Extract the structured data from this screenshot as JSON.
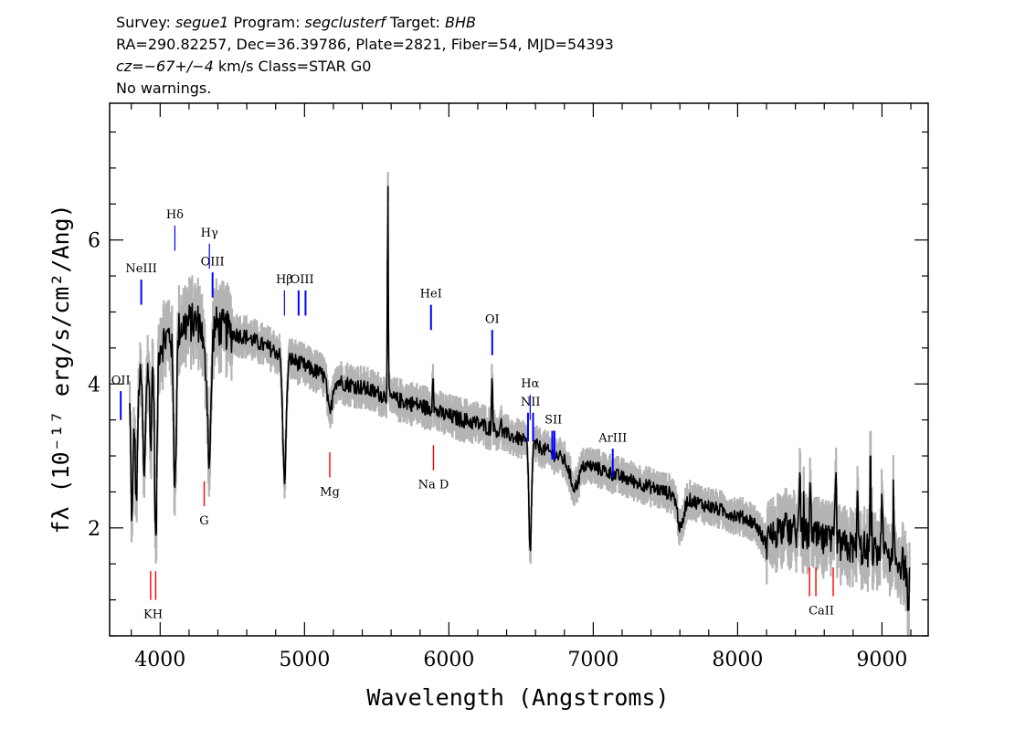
{
  "header": {
    "line1": [
      {
        "text": "Survey: ",
        "italic": false
      },
      {
        "text": "segue1",
        "italic": true
      },
      {
        "text": " Program: ",
        "italic": false
      },
      {
        "text": "segclusterf",
        "italic": true
      },
      {
        "text": " Target: ",
        "italic": false
      },
      {
        "text": "BHB",
        "italic": true
      }
    ],
    "line2": "RA=290.82257, Dec=36.39786, Plate=2821, Fiber=54, MJD=54393",
    "line3": [
      {
        "text": "cz=−67+/−4",
        "italic": true
      },
      {
        "text": " km/s Class=STAR G0",
        "italic": false
      }
    ],
    "line4": "No warnings."
  },
  "chart_data": {
    "type": "line",
    "xlabel": "Wavelength (Angstroms)",
    "ylabel": "fλ (10⁻¹⁷ erg/s/cm²/Ang)",
    "xlim": [
      3650,
      9320
    ],
    "ylim": [
      0.5,
      7.9
    ],
    "x_ticks": [
      4000,
      5000,
      6000,
      7000,
      8000,
      9000
    ],
    "y_ticks": [
      2,
      4,
      6
    ],
    "x_minor_step": 200,
    "y_minor_step": 0.5,
    "colors": {
      "spectrum": "#000000",
      "error": "#b4b4b4",
      "emission": "#0000ff",
      "absorption": "#ff0000"
    },
    "continuum": [
      [
        3800,
        4.0
      ],
      [
        3900,
        4.15
      ],
      [
        4000,
        4.55
      ],
      [
        4100,
        4.75
      ],
      [
        4200,
        4.85
      ],
      [
        4300,
        4.85
      ],
      [
        4400,
        4.8
      ],
      [
        4500,
        4.7
      ],
      [
        4600,
        4.65
      ],
      [
        4700,
        4.55
      ],
      [
        4800,
        4.45
      ],
      [
        4900,
        4.35
      ],
      [
        5000,
        4.25
      ],
      [
        5100,
        4.15
      ],
      [
        5200,
        4.05
      ],
      [
        5400,
        3.95
      ],
      [
        5600,
        3.8
      ],
      [
        5800,
        3.7
      ],
      [
        6000,
        3.55
      ],
      [
        6200,
        3.45
      ],
      [
        6400,
        3.3
      ],
      [
        6600,
        3.15
      ],
      [
        6800,
        2.95
      ],
      [
        7000,
        2.85
      ],
      [
        7200,
        2.7
      ],
      [
        7500,
        2.5
      ],
      [
        7800,
        2.3
      ],
      [
        8100,
        2.1
      ],
      [
        8400,
        1.95
      ],
      [
        8700,
        1.75
      ],
      [
        9000,
        1.65
      ],
      [
        9200,
        1.45
      ]
    ],
    "features": [
      {
        "x": 3805,
        "d": -1.9,
        "w": 8
      },
      {
        "x": 3835,
        "d": -1.7,
        "w": 8
      },
      {
        "x": 3889,
        "d": -1.5,
        "w": 8
      },
      {
        "x": 3934,
        "d": -1.2,
        "w": 6
      },
      {
        "x": 3970,
        "d": -2.7,
        "w": 8
      },
      {
        "x": 4102,
        "d": -2.1,
        "w": 10
      },
      {
        "x": 4308,
        "d": -0.5,
        "w": 12
      },
      {
        "x": 4341,
        "d": -1.9,
        "w": 12
      },
      {
        "x": 4861,
        "d": -1.7,
        "w": 12
      },
      {
        "x": 5175,
        "d": -0.5,
        "w": 15
      },
      {
        "x": 5577,
        "d": 3.0,
        "w": 3
      },
      {
        "x": 5890,
        "d": 0.55,
        "w": 4
      },
      {
        "x": 6300,
        "d": 0.75,
        "w": 4
      },
      {
        "x": 6363,
        "d": 0.25,
        "w": 3
      },
      {
        "x": 6563,
        "d": -1.5,
        "w": 9
      },
      {
        "x": 6870,
        "d": -0.35,
        "w": 30
      },
      {
        "x": 7605,
        "d": -0.45,
        "w": 20
      },
      {
        "x": 8200,
        "d": -0.25,
        "w": 40
      },
      {
        "x": 8430,
        "d": 0.9,
        "w": 4
      },
      {
        "x": 8505,
        "d": 0.8,
        "w": 4
      },
      {
        "x": 8680,
        "d": 0.9,
        "w": 5
      },
      {
        "x": 8830,
        "d": 0.8,
        "w": 4
      },
      {
        "x": 8920,
        "d": 1.3,
        "w": 4
      },
      {
        "x": 9000,
        "d": 1.0,
        "w": 4
      },
      {
        "x": 9080,
        "d": 0.7,
        "w": 4
      },
      {
        "x": 9180,
        "d": -0.5,
        "w": 8
      }
    ],
    "noise": [
      {
        "from": 3700,
        "to": 3900,
        "amp": 0.25
      },
      {
        "from": 3900,
        "to": 4500,
        "amp": 0.35
      },
      {
        "from": 4500,
        "to": 6300,
        "amp": 0.14
      },
      {
        "from": 6300,
        "to": 8200,
        "amp": 0.12
      },
      {
        "from": 8200,
        "to": 9300,
        "amp": 0.3
      }
    ],
    "emission_lines": [
      {
        "label": "OII",
        "x": 3727,
        "y0": 3.5,
        "y1": 3.9,
        "label_y": 4.0
      },
      {
        "label": "NeIII",
        "x": 3869,
        "y0": 5.1,
        "y1": 5.45,
        "label_y": 5.55
      },
      {
        "label": "OIII",
        "x": 4363,
        "y0": 5.2,
        "y1": 5.55,
        "label_y": 5.65
      },
      {
        "label": "OIII",
        "x": 4959,
        "y0": 4.95,
        "y1": 5.3,
        "label_y": 5.4
      },
      {
        "label": "OIII",
        "x": 5007,
        "y0": 4.95,
        "y1": 5.3,
        "label_y": 5.4
      },
      {
        "label": "HeI",
        "x": 5876,
        "y0": 4.75,
        "y1": 5.1,
        "label_y": 5.2
      },
      {
        "label": "OI",
        "x": 6300,
        "y0": 4.4,
        "y1": 4.75,
        "label_y": 4.85
      },
      {
        "label": "NII",
        "x": 6548,
        "y0": 3.2,
        "y1": 3.6,
        "label_y": 3.7
      },
      {
        "label": "NII",
        "x": 6583,
        "y0": 3.2,
        "y1": 3.6,
        "label_y": 3.7
      },
      {
        "label": "SII",
        "x": 6716,
        "y0": 2.95,
        "y1": 3.35,
        "label_y": 3.45
      },
      {
        "label": "SII",
        "x": 6731,
        "y0": 2.95,
        "y1": 3.35,
        "label_y": 3.45
      },
      {
        "label": "ArIII",
        "x": 7135,
        "y0": 2.7,
        "y1": 3.1,
        "label_y": 3.2
      }
    ],
    "balmer_lines": [
      {
        "label": "Hδ",
        "x": 4102,
        "y0": 5.85,
        "y1": 6.2,
        "label_y": 6.3
      },
      {
        "label": "Hγ",
        "x": 4341,
        "y0": 5.6,
        "y1": 5.95,
        "label_y": 6.05
      },
      {
        "label": "Hβ",
        "x": 4861,
        "y0": 4.95,
        "y1": 5.3,
        "label_y": 5.4
      },
      {
        "label": "Hα",
        "x": 6563,
        "y0": 3.5,
        "y1": 3.85,
        "label_y": 3.95
      }
    ],
    "absorption_lines": [
      {
        "label": "KH",
        "xs": [
          3934,
          3969
        ],
        "label_x": 3951,
        "y0": 1.0,
        "y1": 1.4,
        "label_y": 0.75
      },
      {
        "label": "G",
        "xs": [
          4305
        ],
        "label_x": 4305,
        "y0": 2.3,
        "y1": 2.65,
        "label_y": 2.05
      },
      {
        "label": "Mg",
        "xs": [
          5175
        ],
        "label_x": 5175,
        "y0": 2.7,
        "y1": 3.05,
        "label_y": 2.45
      },
      {
        "label": "Na D",
        "xs": [
          5893
        ],
        "label_x": 5893,
        "y0": 2.8,
        "y1": 3.15,
        "label_y": 2.55
      },
      {
        "label": "CaII",
        "xs": [
          8498,
          8542,
          8662
        ],
        "label_x": 8580,
        "y0": 1.05,
        "y1": 1.45,
        "label_y": 0.8
      }
    ]
  }
}
